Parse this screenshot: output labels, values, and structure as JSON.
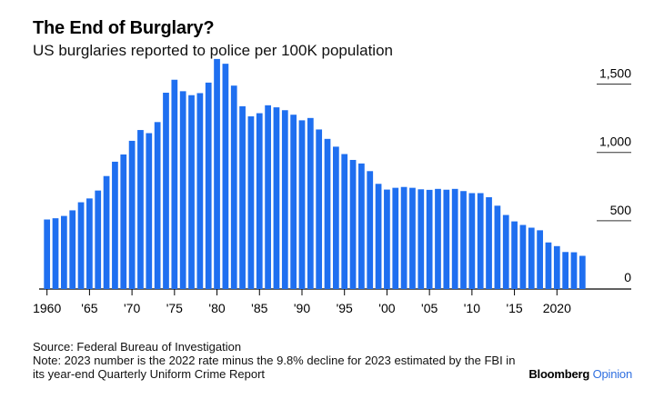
{
  "header": {
    "title": "The End of Burglary?",
    "subtitle": "US burglaries reported to police per 100K population"
  },
  "footer": {
    "source": "Source: Federal Bureau of Investigation",
    "note": "Note: 2023 number is the 2022 rate minus the 9.8% decline for 2023 estimated by the FBI in its year-end Quarterly Uniform Crime Report"
  },
  "brand": {
    "name": "Bloomberg",
    "suffix": "Opinion",
    "suffix_color": "#2f6fe0"
  },
  "colors": {
    "bar": "#1f6ff0",
    "axis": "#000000",
    "grid": "#333333"
  },
  "chart_data": {
    "type": "bar",
    "title": "The End of Burglary?",
    "subtitle": "US burglaries reported to police per 100K population",
    "xlabel": "",
    "ylabel": "",
    "ylim": [
      0,
      1650
    ],
    "y_ticks": [
      0,
      500,
      1000,
      1500
    ],
    "y_tick_labels": [
      "0",
      "500",
      "1,000",
      "1,500"
    ],
    "y_axis_position": "right",
    "x_tick_years": [
      1960,
      1965,
      1970,
      1975,
      1980,
      1985,
      1990,
      1995,
      2000,
      2005,
      2010,
      2015,
      2020
    ],
    "x_tick_labels": [
      "1960",
      "'65",
      "'70",
      "'75",
      "'80",
      "'85",
      "'90",
      "'95",
      "'00",
      "'05",
      "'10",
      "'15",
      "2020"
    ],
    "categories": [
      1960,
      1961,
      1962,
      1963,
      1964,
      1965,
      1966,
      1967,
      1968,
      1969,
      1970,
      1971,
      1972,
      1973,
      1974,
      1975,
      1976,
      1977,
      1978,
      1979,
      1980,
      1981,
      1982,
      1983,
      1984,
      1985,
      1986,
      1987,
      1988,
      1989,
      1990,
      1991,
      1992,
      1993,
      1994,
      1995,
      1996,
      1997,
      1998,
      1999,
      2000,
      2001,
      2002,
      2003,
      2004,
      2005,
      2006,
      2007,
      2008,
      2009,
      2010,
      2011,
      2012,
      2013,
      2014,
      2015,
      2016,
      2017,
      2018,
      2019,
      2020,
      2021,
      2022,
      2023
    ],
    "values": [
      509,
      518,
      535,
      576,
      635,
      663,
      721,
      827,
      932,
      985,
      1085,
      1164,
      1141,
      1222,
      1437,
      1532,
      1448,
      1419,
      1434,
      1511,
      1684,
      1649,
      1489,
      1338,
      1264,
      1287,
      1345,
      1330,
      1309,
      1276,
      1235,
      1252,
      1168,
      1099,
      1042,
      988,
      945,
      919,
      863,
      770,
      728,
      741,
      747,
      741,
      730,
      726,
      733,
      727,
      733,
      717,
      702,
      702,
      672,
      610,
      542,
      495,
      469,
      449,
      430,
      341,
      314,
      271,
      269,
      243
    ],
    "legend": "none"
  }
}
